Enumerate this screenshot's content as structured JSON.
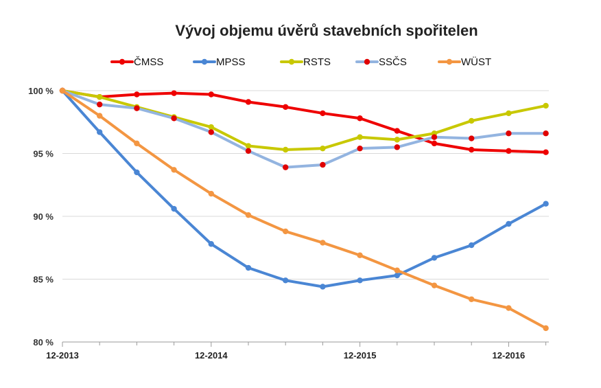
{
  "chart_data": {
    "type": "line",
    "title": "Vývoj objemu úvěrů stavebních spořitelen",
    "xlabel": "",
    "ylabel": "",
    "ylim": [
      80,
      100
    ],
    "y_ticks": [
      "80 %",
      "85 %",
      "90 %",
      "95 %",
      "100 %"
    ],
    "y_tick_values": [
      80,
      85,
      90,
      95,
      100
    ],
    "x_tick_labels": [
      "12-2013",
      "12-2014",
      "12-2015",
      "12-2016"
    ],
    "x_tick_positions": [
      0,
      4,
      8,
      12
    ],
    "x": [
      0,
      1,
      2,
      3,
      4,
      5,
      6,
      7,
      8,
      9,
      10,
      11,
      12,
      13
    ],
    "grid": true,
    "legend_position": "top",
    "series": [
      {
        "name": "ČMSS",
        "color": "#ee0000",
        "marker_fill": "#ee0000",
        "values": [
          100,
          99.5,
          99.7,
          99.8,
          99.7,
          99.1,
          98.7,
          98.2,
          97.8,
          96.8,
          95.8,
          95.3,
          95.2,
          95.1
        ]
      },
      {
        "name": "MPSS",
        "color": "#4a86d4",
        "marker_fill": "#4a86d4",
        "values": [
          100,
          96.7,
          93.5,
          90.6,
          87.8,
          85.9,
          84.9,
          84.4,
          84.9,
          85.3,
          86.7,
          87.7,
          89.4,
          91.0
        ]
      },
      {
        "name": "RSTS",
        "color": "#c8c800",
        "marker_fill": "#c8c800",
        "values": [
          100,
          99.5,
          98.7,
          97.9,
          97.1,
          95.6,
          95.3,
          95.4,
          96.3,
          96.1,
          96.6,
          97.6,
          98.2,
          98.8
        ]
      },
      {
        "name": "SSČS",
        "color": "#93b4e0",
        "marker_fill": "#e00000",
        "values": [
          100,
          98.9,
          98.6,
          97.8,
          96.7,
          95.2,
          93.9,
          94.1,
          95.4,
          95.5,
          96.3,
          96.2,
          96.6,
          96.6
        ]
      },
      {
        "name": "WÜST",
        "color": "#f39642",
        "marker_fill": "#f39642",
        "values": [
          100,
          98.0,
          95.8,
          93.7,
          91.8,
          90.1,
          88.8,
          87.9,
          86.9,
          85.7,
          84.5,
          83.4,
          82.7,
          81.1
        ]
      }
    ]
  }
}
